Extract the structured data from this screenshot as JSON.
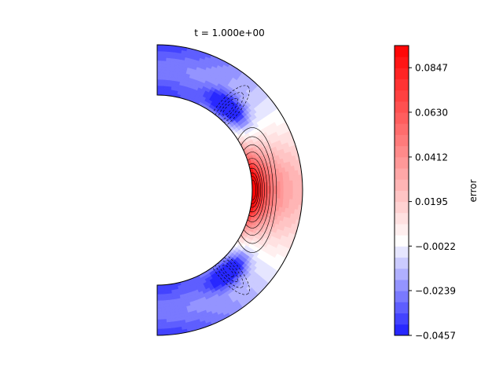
{
  "chart_data": {
    "type": "heatmap",
    "title": "t = 1.000e+00",
    "colorbar": {
      "label": "error",
      "ticks": [
        "0.0847",
        "0.0630",
        "0.0412",
        "0.0195",
        "−0.0022",
        "−0.0239",
        "−0.0457"
      ],
      "tick_values": [
        0.0847,
        0.063,
        0.0412,
        0.0195,
        -0.0022,
        -0.0239,
        -0.0457
      ],
      "range": [
        -0.0457,
        0.0955
      ],
      "colormap": "bwr",
      "levels": 26
    },
    "field": {
      "domain": "right half of spherical shell (meridional section)",
      "min": -0.0457,
      "max": 0.0955,
      "features": [
        {
          "description": "strong positive maximum at inner boundary near equator",
          "value": 0.0955
        },
        {
          "description": "negative minima near inner boundary at mid-latitudes (north and south)",
          "value": -0.0457
        },
        {
          "description": "weak negative values toward the poles",
          "value": -0.02
        }
      ]
    },
    "colors": {
      "negative": "#1a1aff",
      "zero": "#ffffff",
      "positive": "#ff0000",
      "outline": "#000000"
    }
  }
}
